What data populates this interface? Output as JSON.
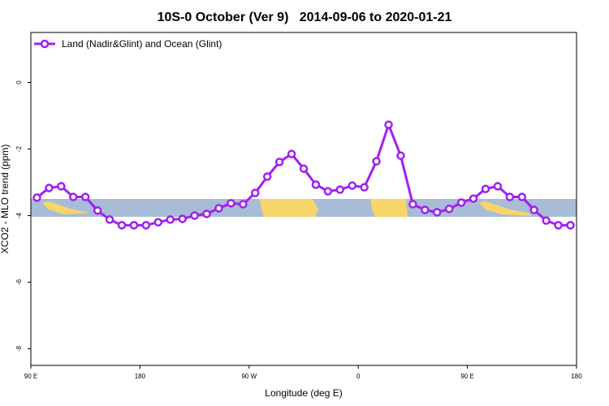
{
  "chart_data": {
    "type": "line",
    "title": "10S-0 October (Ver 9)   2014-09-06 to 2020-01-21",
    "x_label": "Longitude (deg E)",
    "y_label": "XCO2 - MLO trend (ppm)",
    "x": [
      95,
      105,
      115,
      125,
      135,
      145,
      155,
      165,
      175,
      185,
      195,
      205,
      215,
      225,
      235,
      245,
      255,
      265,
      275,
      285,
      295,
      305,
      315,
      325,
      335,
      345,
      355,
      365,
      375,
      385,
      395,
      405,
      415,
      425,
      435,
      445,
      455,
      465,
      475,
      485,
      495,
      505,
      515,
      525,
      535
    ],
    "series": [
      {
        "name": "Land (Nadir&Glint) and Ocean (Glint)",
        "color": "#a020f0",
        "values": [
          -3.46,
          -3.17,
          -3.12,
          -3.44,
          -3.44,
          -3.85,
          -4.12,
          -4.29,
          -4.29,
          -4.29,
          -4.2,
          -4.12,
          -4.1,
          -4.0,
          -3.95,
          -3.78,
          -3.63,
          -3.66,
          -3.32,
          -2.83,
          -2.39,
          -2.15,
          -2.59,
          -3.07,
          -3.27,
          -3.22,
          -3.1,
          -3.15,
          -2.37,
          -1.27,
          -2.2,
          -3.66,
          -3.83,
          -3.9,
          -3.8,
          -3.61,
          -3.49,
          -3.2,
          -3.12,
          -3.44,
          -3.44,
          -3.83,
          -4.15,
          -4.29,
          -4.29
        ]
      }
    ],
    "xlim": [
      90,
      540
    ],
    "xticks": [
      {
        "value": 90,
        "label": "90 E"
      },
      {
        "value": 180,
        "label": "180"
      },
      {
        "value": 270,
        "label": "90 W"
      },
      {
        "value": 360,
        "label": "0"
      },
      {
        "value": 450,
        "label": "90 E"
      },
      {
        "value": 540,
        "label": "180"
      }
    ],
    "ylim": [
      -8.5,
      1.5
    ],
    "yticks": [
      0,
      -2,
      -4,
      -6,
      -8
    ],
    "legend": "top-left"
  }
}
